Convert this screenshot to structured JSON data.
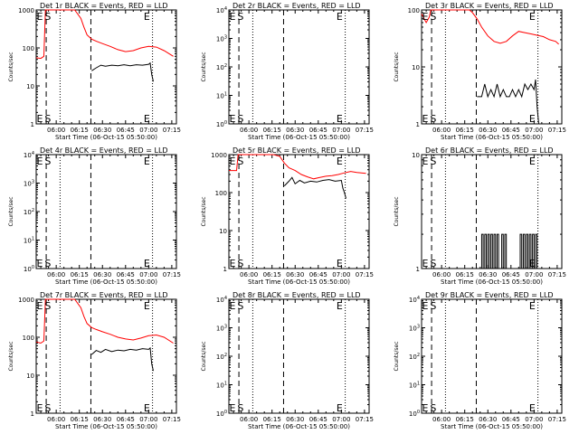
{
  "figure": {
    "xlabel": "Start Time (06-Oct-15 05:50:00)",
    "ylabel": "Counts/sec",
    "x_tick_labels": [
      "06:00",
      "06:15",
      "06:30",
      "06:45",
      "07:00",
      "07:15"
    ]
  },
  "chart_data": [
    {
      "type": "line",
      "title": "Det 1r BLACK = Events, RED = LLD",
      "ylim": [
        1,
        1000
      ],
      "y_ticks": [
        1,
        10,
        100,
        1000
      ],
      "y_tick_labels": [
        "1",
        "10",
        "100",
        "1000"
      ],
      "xlim_min": [
        -3,
        88
      ],
      "E_markers_min": [
        -1.5,
        68
      ],
      "S_marker_min": [
        2.5
      ],
      "dashed_min": [
        3.5,
        32.5
      ],
      "dotted_min": [
        12.5,
        72.5
      ],
      "series": [
        {
          "name": "Events",
          "color": "#000000",
          "x": [
            33,
            36,
            39,
            42,
            46,
            50,
            54,
            58,
            62,
            66,
            70,
            71,
            72,
            73
          ],
          "y": [
            25,
            30,
            35,
            33,
            35,
            34,
            36,
            34,
            36,
            35,
            37,
            40,
            20,
            13
          ]
        },
        {
          "name": "LLD",
          "color": "#ff0000",
          "x": [
            -3,
            0,
            2,
            3,
            6,
            10,
            14,
            18,
            22,
            26,
            28,
            30,
            33,
            36,
            40,
            45,
            50,
            55,
            60,
            65,
            70,
            75,
            80,
            86
          ],
          "y": [
            55,
            53,
            60,
            1000,
            1000,
            1000,
            1000,
            1000,
            1000,
            600,
            350,
            220,
            170,
            150,
            130,
            110,
            90,
            80,
            85,
            100,
            110,
            105,
            85,
            60
          ]
        }
      ]
    },
    {
      "type": "line",
      "title": "Det 2r BLACK = Events, RED = LLD",
      "ylim": [
        1,
        10000
      ],
      "y_ticks": [
        1,
        10,
        100,
        1000,
        10000
      ],
      "y_tick_labels": [
        "10^0",
        "10^1",
        "10^2",
        "10^3",
        "10^4"
      ],
      "xlim_min": [
        -3,
        88
      ],
      "E_markers_min": [
        -1.5,
        68
      ],
      "S_marker_min": [
        2.5
      ],
      "dashed_min": [
        3.5,
        32.5
      ],
      "dotted_min": [
        12.5,
        72.5
      ],
      "series": []
    },
    {
      "type": "line",
      "title": "Det 3r BLACK = Events, RED = LLD",
      "ylim": [
        1,
        100
      ],
      "y_ticks": [
        1,
        10,
        100
      ],
      "y_tick_labels": [
        "1",
        "10",
        "100"
      ],
      "xlim_min": [
        -3,
        88
      ],
      "E_markers_min": [
        -1.5,
        68
      ],
      "S_marker_min": [
        2.5
      ],
      "dashed_min": [
        3.5,
        32.5
      ],
      "dotted_min": [
        12.5,
        72.5
      ],
      "series": [
        {
          "name": "Events",
          "color": "#000000",
          "x": [
            33,
            36,
            38,
            40,
            42,
            44,
            46,
            48,
            50,
            52,
            54,
            56,
            58,
            60,
            62,
            64,
            66,
            68,
            70,
            71,
            72,
            73
          ],
          "y": [
            3,
            3,
            5,
            3,
            4,
            3,
            5,
            3,
            4,
            3,
            3,
            4,
            3,
            4,
            3,
            5,
            4,
            5,
            4,
            6,
            2,
            1
          ]
        },
        {
          "name": "LLD",
          "color": "#ff0000",
          "x": [
            -3,
            0,
            2,
            3,
            6,
            10,
            15,
            20,
            25,
            28,
            30,
            33,
            36,
            40,
            44,
            48,
            52,
            56,
            60,
            64,
            68,
            72,
            76,
            80,
            84,
            86
          ],
          "y": [
            85,
            60,
            75,
            100,
            100,
            100,
            100,
            100,
            100,
            100,
            90,
            70,
            50,
            35,
            28,
            26,
            28,
            35,
            42,
            40,
            38,
            36,
            34,
            30,
            28,
            25
          ]
        }
      ]
    },
    {
      "type": "line",
      "title": "Det 4r BLACK = Events, RED = LLD",
      "ylim": [
        1,
        10000
      ],
      "y_ticks": [
        1,
        10,
        100,
        1000,
        10000
      ],
      "y_tick_labels": [
        "10^0",
        "10^1",
        "10^2",
        "10^3",
        "10^4"
      ],
      "xlim_min": [
        -3,
        88
      ],
      "E_markers_min": [
        -1.5,
        68
      ],
      "S_marker_min": [
        2.5
      ],
      "dashed_min": [
        3.5,
        32.5
      ],
      "dotted_min": [
        12.5,
        72.5
      ],
      "series": []
    },
    {
      "type": "line",
      "title": "Det 5r BLACK = Events, RED = LLD",
      "ylim": [
        1,
        1000
      ],
      "y_ticks": [
        1,
        10,
        100,
        1000
      ],
      "y_tick_labels": [
        "1",
        "10",
        "100",
        "1000"
      ],
      "xlim_min": [
        -3,
        88
      ],
      "E_markers_min": [
        -1.5,
        68
      ],
      "S_marker_min": [
        2.5
      ],
      "dashed_min": [
        3.5,
        32.5
      ],
      "dotted_min": [
        12.5,
        72.5
      ],
      "series": [
        {
          "name": "Events",
          "color": "#000000",
          "x": [
            33,
            36,
            38,
            40,
            43,
            46,
            50,
            54,
            58,
            62,
            66,
            70,
            71,
            72,
            73
          ],
          "y": [
            150,
            200,
            250,
            170,
            210,
            180,
            200,
            190,
            210,
            220,
            200,
            210,
            130,
            100,
            70
          ]
        },
        {
          "name": "LLD",
          "color": "#ff0000",
          "x": [
            -3,
            0,
            2,
            3,
            6,
            10,
            14,
            20,
            26,
            30,
            33,
            36,
            40,
            44,
            48,
            52,
            56,
            60,
            64,
            68,
            72,
            76,
            80,
            86
          ],
          "y": [
            380,
            380,
            380,
            1000,
            1000,
            1000,
            1000,
            1000,
            1000,
            900,
            600,
            450,
            380,
            300,
            260,
            230,
            250,
            270,
            280,
            300,
            330,
            360,
            340,
            320
          ]
        }
      ]
    },
    {
      "type": "line",
      "title": "Det 6r BLACK = Events, RED = LLD",
      "ylim": [
        1,
        10
      ],
      "y_ticks": [
        1,
        10
      ],
      "y_tick_labels": [
        "1",
        "10"
      ],
      "xlim_min": [
        -3,
        88
      ],
      "E_markers_min": [
        -1.5,
        68
      ],
      "S_marker_min": [
        2.5
      ],
      "dashed_min": [
        3.5,
        32.5
      ],
      "dotted_min": [
        12.5,
        72.5
      ],
      "series": [
        {
          "name": "Events",
          "color": "#000000",
          "x": [
            35,
            36,
            37,
            38,
            39,
            40,
            41,
            42,
            43,
            44,
            45,
            46,
            47,
            48,
            49,
            50,
            51,
            52,
            60,
            61,
            62,
            63,
            64,
            65,
            66,
            67,
            68,
            69,
            70,
            71,
            72
          ],
          "y": [
            1,
            2,
            1,
            2,
            1,
            2,
            1,
            2,
            1,
            2,
            1,
            2,
            1,
            1,
            2,
            1,
            2,
            1,
            1,
            2,
            1,
            2,
            1,
            2,
            1,
            2,
            1,
            2,
            1,
            2,
            1
          ]
        }
      ]
    },
    {
      "type": "line",
      "title": "Det 7r BLACK = Events, RED = LLD",
      "ylim": [
        1,
        1000
      ],
      "y_ticks": [
        1,
        10,
        100,
        1000
      ],
      "y_tick_labels": [
        "1",
        "10",
        "100",
        "1000"
      ],
      "xlim_min": [
        -3,
        88
      ],
      "E_markers_min": [
        -1.5,
        68
      ],
      "S_marker_min": [
        2.5
      ],
      "dashed_min": [
        3.5,
        32.5
      ],
      "dotted_min": [
        12.5,
        72.5
      ],
      "series": [
        {
          "name": "Events",
          "color": "#000000",
          "x": [
            33,
            36,
            39,
            42,
            46,
            50,
            54,
            58,
            62,
            66,
            70,
            71,
            72,
            73
          ],
          "y": [
            35,
            45,
            40,
            48,
            42,
            46,
            44,
            48,
            46,
            50,
            48,
            52,
            20,
            13
          ]
        },
        {
          "name": "LLD",
          "color": "#ff0000",
          "x": [
            -3,
            0,
            2,
            3,
            6,
            10,
            14,
            18,
            22,
            26,
            28,
            30,
            33,
            36,
            40,
            45,
            50,
            55,
            60,
            65,
            70,
            75,
            80,
            86
          ],
          "y": [
            75,
            70,
            80,
            1000,
            1000,
            1000,
            1000,
            1000,
            1000,
            600,
            350,
            230,
            180,
            160,
            140,
            120,
            100,
            90,
            85,
            95,
            110,
            115,
            100,
            70
          ]
        }
      ]
    },
    {
      "type": "line",
      "title": "Det 8r BLACK = Events, RED = LLD",
      "ylim": [
        1,
        10000
      ],
      "y_ticks": [
        1,
        10,
        100,
        1000,
        10000
      ],
      "y_tick_labels": [
        "10^0",
        "10^1",
        "10^2",
        "10^3",
        "10^4"
      ],
      "xlim_min": [
        -3,
        88
      ],
      "E_markers_min": [
        -1.5,
        68
      ],
      "S_marker_min": [
        2.5
      ],
      "dashed_min": [
        3.5,
        32.5
      ],
      "dotted_min": [
        12.5,
        72.5
      ],
      "series": []
    },
    {
      "type": "line",
      "title": "Det 9r BLACK = Events, RED = LLD",
      "ylim": [
        1,
        10000
      ],
      "y_ticks": [
        1,
        10,
        100,
        1000,
        10000
      ],
      "y_tick_labels": [
        "10^0",
        "10^1",
        "10^2",
        "10^3",
        "10^4"
      ],
      "xlim_min": [
        -3,
        88
      ],
      "E_markers_min": [
        -1.5,
        68
      ],
      "S_marker_min": [
        2.5
      ],
      "dashed_min": [
        3.5,
        32.5
      ],
      "dotted_min": [
        12.5,
        72.5
      ],
      "series": []
    }
  ]
}
